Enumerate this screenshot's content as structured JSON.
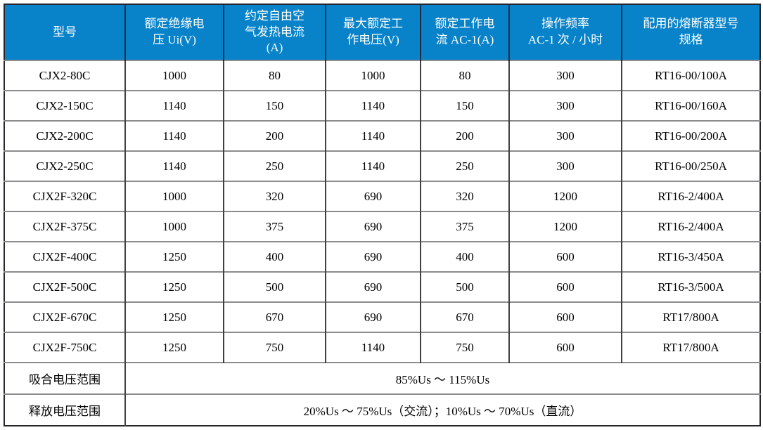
{
  "colors": {
    "header_bg": "#0883C9",
    "header_text": "#ffffff",
    "body_text": "#000000",
    "grid_vertical": "#404040",
    "grid_horizontal": "#8c8c8c",
    "outer_border": "#26262e",
    "page_bg": "#ffffff"
  },
  "table": {
    "columns": [
      {
        "label": "型号"
      },
      {
        "label": "额定绝缘电\n压 Ui(V)"
      },
      {
        "label": "约定自由空\n气发热电流\n(A)"
      },
      {
        "label": "最大额定工\n作电压(V)"
      },
      {
        "label": "额定工作电\n流 AC-1(A)"
      },
      {
        "label": "操作频率\nAC-1 次 / 小时"
      },
      {
        "label": "配用的熔断器型号\n规格"
      }
    ],
    "rows": [
      [
        "CJX2-80C",
        "1000",
        "80",
        "1000",
        "80",
        "300",
        "RT16-00/100A"
      ],
      [
        "CJX2-150C",
        "1140",
        "150",
        "1140",
        "150",
        "300",
        "RT16-00/160A"
      ],
      [
        "CJX2-200C",
        "1140",
        "200",
        "1140",
        "200",
        "300",
        "RT16-00/200A"
      ],
      [
        "CJX2-250C",
        "1140",
        "250",
        "1140",
        "250",
        "300",
        "RT16-00/250A"
      ],
      [
        "CJX2F-320C",
        "1000",
        "320",
        "690",
        "320",
        "1200",
        "RT16-2/400A"
      ],
      [
        "CJX2F-375C",
        "1000",
        "375",
        "690",
        "375",
        "1200",
        "RT16-2/400A"
      ],
      [
        "CJX2F-400C",
        "1250",
        "400",
        "690",
        "400",
        "600",
        "RT16-3/450A"
      ],
      [
        "CJX2F-500C",
        "1250",
        "500",
        "690",
        "500",
        "600",
        "RT16-3/500A"
      ],
      [
        "CJX2F-670C",
        "1250",
        "670",
        "690",
        "670",
        "600",
        "RT17/800A"
      ],
      [
        "CJX2F-750C",
        "1250",
        "750",
        "1140",
        "750",
        "600",
        "RT17/800A"
      ]
    ],
    "footer_rows": [
      {
        "label": "吸合电压范围",
        "value": "85%Us ～ 115%Us"
      },
      {
        "label": "释放电压范围",
        "value": "20%Us ～ 75%Us（交流）；10%Us ～ 70%Us（直流）"
      }
    ]
  }
}
